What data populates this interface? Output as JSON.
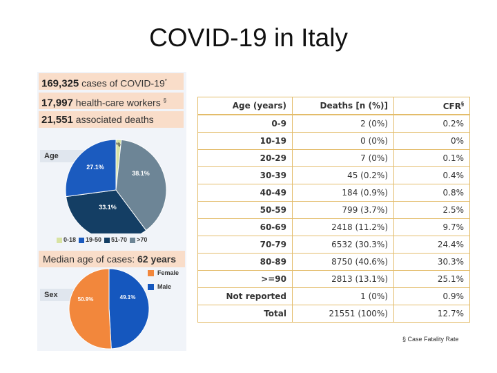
{
  "title": "COVID-19 in Italy",
  "stats": [
    {
      "value": "169,325",
      "text": "cases of COVID-19",
      "mark": "*"
    },
    {
      "value": "17,997",
      "text": "health-care workers",
      "mark": "§"
    },
    {
      "value": "21,551",
      "text": "associated deaths",
      "mark": ""
    }
  ],
  "age_chart": {
    "tag": "Age",
    "slices": [
      {
        "label": "0-18",
        "value": 1.7,
        "display": "1.7%",
        "color": "#d8e3a3"
      },
      {
        "label": "19-50",
        "value": 27.1,
        "display": "27.1%",
        "color": "#1b5bbf"
      },
      {
        "label": "51-70",
        "value": 33.1,
        "display": "33.1%",
        "color": "#143e64"
      },
      {
        "label": ">70",
        "value": 38.1,
        "display": "38.1%",
        "color": "#6d8596"
      }
    ]
  },
  "median": {
    "label": "Median age of cases:",
    "value": "62 years"
  },
  "sex_chart": {
    "tag": "Sex",
    "slices": [
      {
        "label": "Female",
        "value": 50.9,
        "display": "50.9%",
        "color": "#f2873c"
      },
      {
        "label": "Male",
        "value": 49.1,
        "display": "49.1%",
        "color": "#1557be"
      }
    ]
  },
  "table": {
    "headers": {
      "age": "Age (years)",
      "deaths": "Deaths [n (%)]",
      "cfr": "CFR",
      "cfr_mark": "§"
    },
    "rows": [
      {
        "age": "0-9",
        "deaths": "2 (0%)",
        "cfr": "0.2%"
      },
      {
        "age": "10-19",
        "deaths": "0 (0%)",
        "cfr": "0%"
      },
      {
        "age": "20-29",
        "deaths": "7 (0%)",
        "cfr": "0.1%"
      },
      {
        "age": "30-39",
        "deaths": "45 (0.2%)",
        "cfr": "0.4%"
      },
      {
        "age": "40-49",
        "deaths": "184 (0.9%)",
        "cfr": "0.8%"
      },
      {
        "age": "50-59",
        "deaths": "799 (3.7%)",
        "cfr": "2.5%"
      },
      {
        "age": "60-69",
        "deaths": "2418 (11.2%)",
        "cfr": "9.7%"
      },
      {
        "age": "70-79",
        "deaths": "6532 (30.3%)",
        "cfr": "24.4%"
      },
      {
        "age": "80-89",
        "deaths": "8750 (40.6%)",
        "cfr": "30.3%"
      },
      {
        "age": ">=90",
        "deaths": "2813 (13.1%)",
        "cfr": "25.1%"
      },
      {
        "age": "Not reported",
        "deaths": "1 (0%)",
        "cfr": "0.9%"
      },
      {
        "age": "Total",
        "deaths": "21551 (100%)",
        "cfr": "12.7%"
      }
    ]
  },
  "footnote": "§ Case Fatality Rate"
}
